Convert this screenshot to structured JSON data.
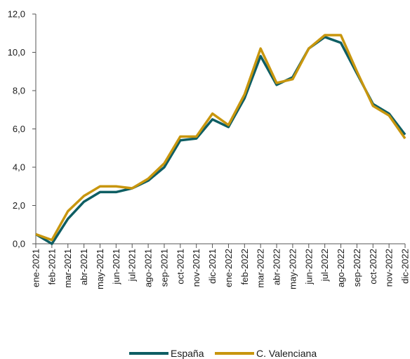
{
  "chart_data": {
    "type": "line",
    "title": "",
    "xlabel": "",
    "ylabel": "",
    "categories": [
      "ene-2021",
      "feb-2021",
      "mar-2021",
      "abr-2021",
      "may-2021",
      "jun-2021",
      "jul-2021",
      "ago-2021",
      "sep-2021",
      "oct-2021",
      "nov-2021",
      "dic-2021",
      "ene-2022",
      "feb-2022",
      "mar-2022",
      "abr-2022",
      "may-2022",
      "jun-2022",
      "jul-2022",
      "ago-2022",
      "sep-2022",
      "oct-2022",
      "nov-2022",
      "dic-2022"
    ],
    "ylim": [
      0,
      12
    ],
    "yticks": [
      "0,0",
      "2,0",
      "4,0",
      "6,0",
      "8,0",
      "10,0",
      "12,0"
    ],
    "grid": false,
    "legend_position": "bottom",
    "series": [
      {
        "name": "España",
        "color": "#0e5e63",
        "values": [
          0.5,
          0.0,
          1.3,
          2.2,
          2.7,
          2.7,
          2.9,
          3.3,
          4.0,
          5.4,
          5.5,
          6.5,
          6.1,
          7.6,
          9.8,
          8.3,
          8.7,
          10.2,
          10.8,
          10.5,
          8.9,
          7.3,
          6.8,
          5.7
        ]
      },
      {
        "name": "C. Valenciana",
        "color": "#c8960e",
        "values": [
          0.5,
          0.2,
          1.7,
          2.5,
          3.0,
          3.0,
          2.9,
          3.4,
          4.2,
          5.6,
          5.6,
          6.8,
          6.2,
          7.8,
          10.2,
          8.4,
          8.6,
          10.2,
          10.9,
          10.9,
          9.0,
          7.2,
          6.7,
          5.5
        ]
      }
    ]
  }
}
